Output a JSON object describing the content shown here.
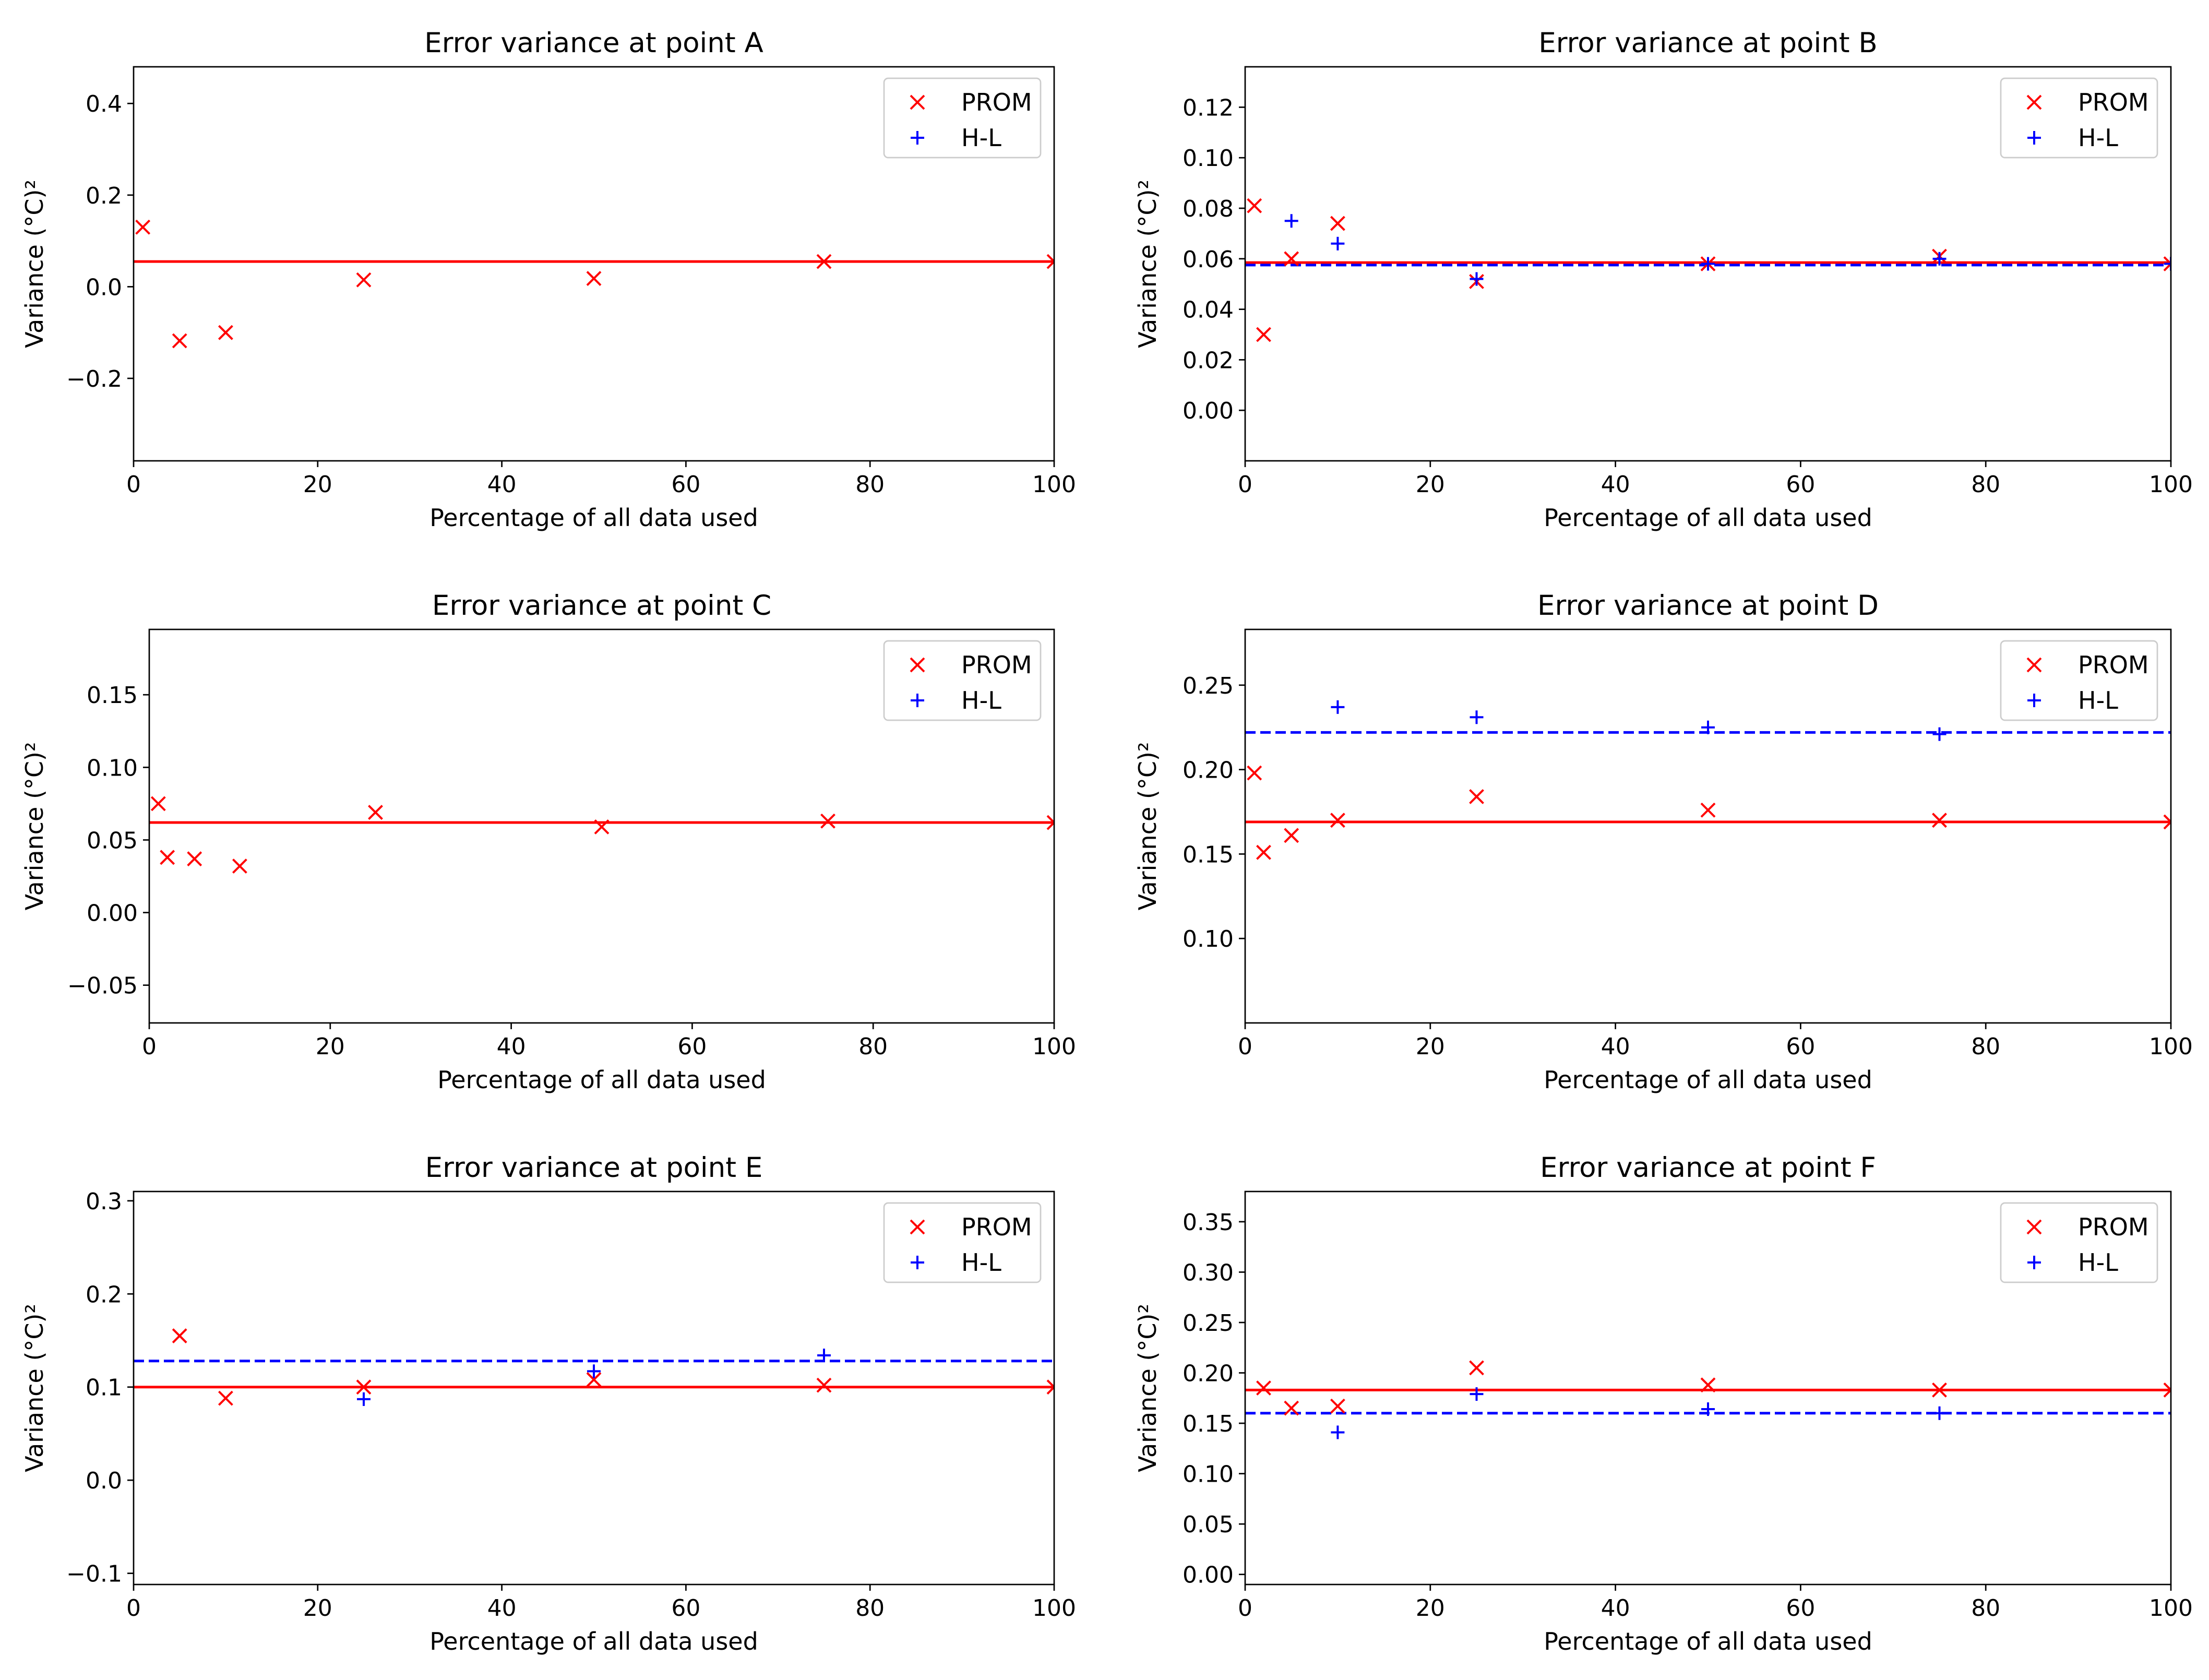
{
  "figure": {
    "background": "#ffffff"
  },
  "styles": {
    "prom_color": "#ff0000",
    "hl_color": "#0000ff",
    "prom_marker": "x",
    "hl_marker": "plus"
  },
  "chart_data": [
    {
      "type": "scatter",
      "title": "Error variance at point A",
      "xlabel": "Percentage of all data used",
      "ylabel": "Variance (°C)²",
      "xlim": [
        0,
        100
      ],
      "ylim": [
        -0.38,
        0.48
      ],
      "xticks": [
        0,
        20,
        40,
        60,
        80,
        100
      ],
      "yticks": [
        -0.2,
        0.0,
        0.2,
        0.4
      ],
      "ytick_decimals": 1,
      "legend": {
        "position": "top-right",
        "entries": [
          "PROM",
          "H-L"
        ]
      },
      "series": [
        {
          "name": "PROM",
          "marker": "x",
          "color": "#ff0000",
          "x": [
            1,
            5,
            10,
            25,
            50,
            75,
            100
          ],
          "y": [
            0.13,
            -0.118,
            -0.1,
            0.015,
            0.018,
            0.055,
            0.055
          ]
        }
      ],
      "reference_lines": [
        {
          "series": "PROM",
          "y": 0.055,
          "style": "solid",
          "color": "#ff0000"
        }
      ]
    },
    {
      "type": "scatter",
      "title": "Error variance at point B",
      "xlabel": "Percentage of all data used",
      "ylabel": "Variance (°C)²",
      "xlim": [
        0,
        100
      ],
      "ylim": [
        -0.02,
        0.136
      ],
      "xticks": [
        0,
        20,
        40,
        60,
        80,
        100
      ],
      "yticks": [
        0.0,
        0.02,
        0.04,
        0.06,
        0.08,
        0.1,
        0.12
      ],
      "ytick_decimals": 2,
      "legend": {
        "position": "top-right",
        "entries": [
          "PROM",
          "H-L"
        ]
      },
      "series": [
        {
          "name": "PROM",
          "marker": "x",
          "color": "#ff0000",
          "x": [
            1,
            2,
            5,
            10,
            25,
            50,
            75,
            100
          ],
          "y": [
            0.081,
            0.03,
            0.06,
            0.074,
            0.051,
            0.058,
            0.061,
            0.058
          ]
        },
        {
          "name": "H-L",
          "marker": "plus",
          "color": "#0000ff",
          "x": [
            5,
            10,
            25,
            50,
            75,
            100
          ],
          "y": [
            0.075,
            0.066,
            0.052,
            0.058,
            0.06,
            0.058
          ]
        }
      ],
      "reference_lines": [
        {
          "series": "PROM",
          "y": 0.0585,
          "style": "solid",
          "color": "#ff0000"
        },
        {
          "series": "H-L",
          "y": 0.0575,
          "style": "dashed",
          "color": "#0000ff"
        }
      ]
    },
    {
      "type": "scatter",
      "title": "Error variance at point C",
      "xlabel": "Percentage of all data used",
      "ylabel": "Variance (°C)²",
      "xlim": [
        0,
        100
      ],
      "ylim": [
        -0.076,
        0.195
      ],
      "xticks": [
        0,
        20,
        40,
        60,
        80,
        100
      ],
      "yticks": [
        -0.05,
        0.0,
        0.05,
        0.1,
        0.15
      ],
      "ytick_decimals": 2,
      "legend": {
        "position": "top-right",
        "entries": [
          "PROM",
          "H-L"
        ]
      },
      "series": [
        {
          "name": "PROM",
          "marker": "x",
          "color": "#ff0000",
          "x": [
            1,
            2,
            5,
            10,
            25,
            50,
            75,
            100
          ],
          "y": [
            0.075,
            0.038,
            0.037,
            0.032,
            0.069,
            0.059,
            0.063,
            0.062
          ]
        }
      ],
      "reference_lines": [
        {
          "series": "PROM",
          "y": 0.062,
          "style": "solid",
          "color": "#ff0000"
        }
      ]
    },
    {
      "type": "scatter",
      "title": "Error variance at point D",
      "xlabel": "Percentage of all data used",
      "ylabel": "Variance (°C)²",
      "xlim": [
        0,
        100
      ],
      "ylim": [
        0.05,
        0.283
      ],
      "xticks": [
        0,
        20,
        40,
        60,
        80,
        100
      ],
      "yticks": [
        0.1,
        0.15,
        0.2,
        0.25
      ],
      "ytick_decimals": 2,
      "legend": {
        "position": "top-right",
        "entries": [
          "PROM",
          "H-L"
        ]
      },
      "series": [
        {
          "name": "PROM",
          "marker": "x",
          "color": "#ff0000",
          "x": [
            1,
            2,
            5,
            10,
            25,
            50,
            75,
            100
          ],
          "y": [
            0.198,
            0.151,
            0.161,
            0.17,
            0.184,
            0.176,
            0.17,
            0.169
          ]
        },
        {
          "name": "H-L",
          "marker": "plus",
          "color": "#0000ff",
          "x": [
            10,
            25,
            50,
            75
          ],
          "y": [
            0.237,
            0.231,
            0.225,
            0.221
          ]
        }
      ],
      "reference_lines": [
        {
          "series": "PROM",
          "y": 0.169,
          "style": "solid",
          "color": "#ff0000"
        },
        {
          "series": "H-L",
          "y": 0.222,
          "style": "dashed",
          "color": "#0000ff"
        }
      ]
    },
    {
      "type": "scatter",
      "title": "Error variance at point E",
      "xlabel": "Percentage of all data used",
      "ylabel": "Variance (°C)²",
      "xlim": [
        0,
        100
      ],
      "ylim": [
        -0.112,
        0.31
      ],
      "xticks": [
        0,
        20,
        40,
        60,
        80,
        100
      ],
      "yticks": [
        -0.1,
        0.0,
        0.1,
        0.2,
        0.3
      ],
      "ytick_decimals": 1,
      "legend": {
        "position": "top-right",
        "entries": [
          "PROM",
          "H-L"
        ]
      },
      "series": [
        {
          "name": "PROM",
          "marker": "x",
          "color": "#ff0000",
          "x": [
            5,
            10,
            25,
            50,
            75,
            100
          ],
          "y": [
            0.155,
            0.088,
            0.1,
            0.108,
            0.102,
            0.1
          ]
        },
        {
          "name": "H-L",
          "marker": "plus",
          "color": "#0000ff",
          "x": [
            25,
            50,
            75
          ],
          "y": [
            0.087,
            0.117,
            0.134
          ]
        }
      ],
      "reference_lines": [
        {
          "series": "PROM",
          "y": 0.1,
          "style": "solid",
          "color": "#ff0000"
        },
        {
          "series": "H-L",
          "y": 0.128,
          "style": "dashed",
          "color": "#0000ff"
        }
      ]
    },
    {
      "type": "scatter",
      "title": "Error variance at point F",
      "xlabel": "Percentage of all data used",
      "ylabel": "Variance (°C)²",
      "xlim": [
        0,
        100
      ],
      "ylim": [
        -0.01,
        0.38
      ],
      "xticks": [
        0,
        20,
        40,
        60,
        80,
        100
      ],
      "yticks": [
        0.0,
        0.05,
        0.1,
        0.15,
        0.2,
        0.25,
        0.3,
        0.35
      ],
      "ytick_decimals": 2,
      "legend": {
        "position": "top-right",
        "entries": [
          "PROM",
          "H-L"
        ]
      },
      "series": [
        {
          "name": "PROM",
          "marker": "x",
          "color": "#ff0000",
          "x": [
            2,
            5,
            10,
            25,
            50,
            75,
            100
          ],
          "y": [
            0.185,
            0.165,
            0.167,
            0.205,
            0.188,
            0.183,
            0.183
          ]
        },
        {
          "name": "H-L",
          "marker": "plus",
          "color": "#0000ff",
          "x": [
            10,
            25,
            50,
            75
          ],
          "y": [
            0.141,
            0.179,
            0.164,
            0.16
          ]
        }
      ],
      "reference_lines": [
        {
          "series": "PROM",
          "y": 0.183,
          "style": "solid",
          "color": "#ff0000"
        },
        {
          "series": "H-L",
          "y": 0.16,
          "style": "dashed",
          "color": "#0000ff"
        }
      ]
    }
  ]
}
